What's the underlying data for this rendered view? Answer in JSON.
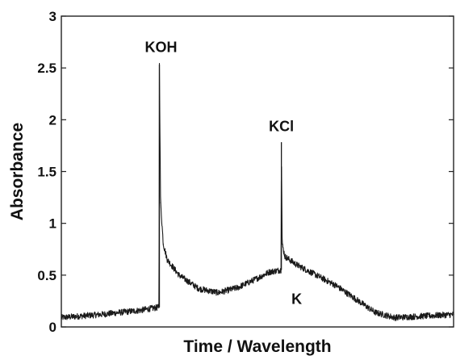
{
  "chart_data": {
    "type": "line",
    "title": "",
    "xlabel": "Time / Wavelength",
    "ylabel": "Absorbance",
    "ylim": [
      0,
      3
    ],
    "xlim": [
      0,
      100
    ],
    "x_ticks": [],
    "y_ticks": [
      0,
      0.5,
      1,
      1.5,
      2,
      2.5,
      3
    ],
    "grid": false,
    "legend": "none",
    "series": [
      {
        "color": "#1a1a1a",
        "noise": 0.03,
        "x": [
          0,
          10,
          20,
          24.9,
          25,
          25.3,
          26,
          27,
          30,
          35,
          40,
          45,
          50,
          53,
          56,
          56.1,
          56.3,
          57,
          60,
          65,
          70,
          75,
          80,
          85,
          90,
          95,
          100
        ],
        "y": [
          0.09,
          0.12,
          0.16,
          0.19,
          2.53,
          1.2,
          0.8,
          0.65,
          0.5,
          0.37,
          0.33,
          0.38,
          0.47,
          0.53,
          0.55,
          1.78,
          0.8,
          0.68,
          0.6,
          0.5,
          0.4,
          0.27,
          0.14,
          0.09,
          0.1,
          0.11,
          0.12
        ]
      }
    ],
    "annotations": [
      {
        "text": "KOH",
        "x": 25,
        "y": 2.53
      },
      {
        "text": "KCl",
        "x": 56.1,
        "y": 1.78
      },
      {
        "text": "K",
        "x": 60,
        "y": 0.3
      }
    ]
  }
}
